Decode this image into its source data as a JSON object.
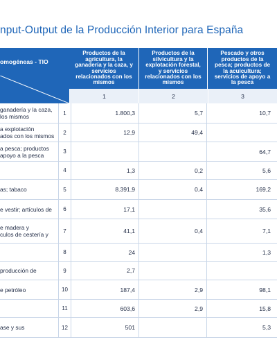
{
  "title": "nput-Output de la Producción Interior para España",
  "header": {
    "left_label": "omogéneas - TIO",
    "columns": [
      {
        "label": "Productos de la agricultura, la ganadería y la caza, y servicios relacionados con los mismos",
        "num": "1"
      },
      {
        "label": "Productos de la silvicultura y la explotación forestal, y servicios relacionados con los mismos",
        "num": "2"
      },
      {
        "label": "Pescado y otros productos de la pesca; productos de la acuicultura; servicios de apoyo a la pesca",
        "num": "3"
      }
    ]
  },
  "rows": [
    {
      "label": " ganadería y la caza,\n los mismos",
      "n": "1",
      "v1": "1.800,3",
      "v2": "5,7",
      "v3": "10,7"
    },
    {
      "label": "a explotación\nados con los mismos",
      "n": "2",
      "v1": "12,9",
      "v2": "49,4",
      "v3": ""
    },
    {
      "label": "a pesca; productos\n apoyo a la pesca",
      "n": "3",
      "v1": "",
      "v2": "",
      "v3": "64,7"
    },
    {
      "label": "",
      "n": "4",
      "v1": "1,3",
      "v2": "0,2",
      "v3": "5,6"
    },
    {
      "label": "as; tabaco",
      "n": "5",
      "v1": "8.391,9",
      "v2": "0,4",
      "v3": "169,2"
    },
    {
      "label": "e vestir; artículos de",
      "n": "6",
      "v1": "17,1",
      "v2": "",
      "v3": "35,6"
    },
    {
      "label": "e madera y\nculos de cestería y",
      "n": "7",
      "v1": "41,1",
      "v2": "0,4",
      "v3": "7,1"
    },
    {
      "label": "",
      "n": "8",
      "v1": "24",
      "v2": "",
      "v3": "1,3"
    },
    {
      "label": "producción de",
      "n": "9",
      "v1": "2,7",
      "v2": "",
      "v3": ""
    },
    {
      "label": "e petróleo",
      "n": "10",
      "v1": "187,4",
      "v2": "2,9",
      "v3": "98,1"
    },
    {
      "label": "",
      "n": "11",
      "v1": "603,6",
      "v2": "2,9",
      "v3": "15,8"
    },
    {
      "label": "ase y sus",
      "n": "12",
      "v1": "501",
      "v2": "",
      "v3": "5,3"
    }
  ]
}
